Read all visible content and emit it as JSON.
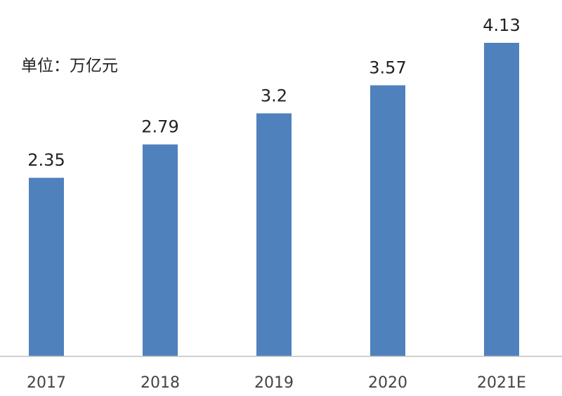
{
  "chart_data": {
    "type": "bar",
    "unit_label": "单位：万亿元",
    "categories": [
      "2017",
      "2018",
      "2019",
      "2020",
      "2021E"
    ],
    "values": [
      2.35,
      2.79,
      3.2,
      3.57,
      4.13
    ],
    "value_labels": [
      "2.35",
      "2.79",
      "3.2",
      "3.57",
      "4.13"
    ],
    "ylim": [
      0,
      4.13
    ],
    "grid": false,
    "legend": "none",
    "colors": {
      "bar": "#4f81bd",
      "axis": "#bfbfbf",
      "text": "#222222"
    }
  }
}
